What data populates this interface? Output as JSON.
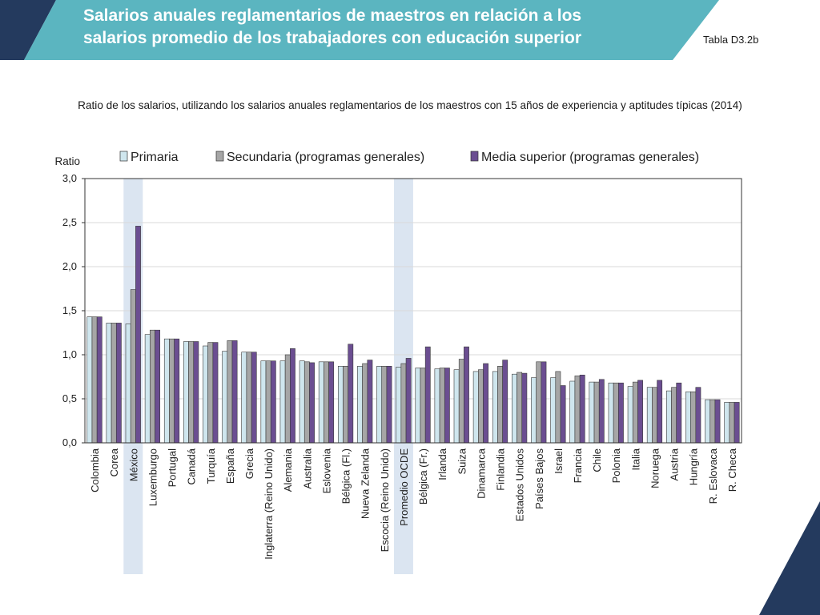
{
  "header": {
    "title_line1": "Salarios anuales reglamentarios de maestros en relación a los",
    "title_line2": "salarios promedio de los trabajadores con educación superior",
    "table_ref": "Tabla D3.2b"
  },
  "colors": {
    "header_bg": "#5bb5c0",
    "dark_navy": "#243a5e",
    "highlight_band": "#dbe5f1",
    "primaria": "#cfe6ee",
    "secundaria": "#a6a6a6",
    "media_superior": "#6b4e91"
  },
  "chart_data": {
    "type": "bar",
    "title": "Ratio de los salarios, utilizando los salarios anuales reglamentarios de los maestros con 15 años de experiencia y aptitudes típicas (2014)",
    "ylabel": "Ratio",
    "ylim": [
      0,
      3.0
    ],
    "yticks": [
      "3,0",
      "2,5",
      "2,0",
      "1,5",
      "1,0",
      "0,5",
      "0,0"
    ],
    "ytick_values": [
      3.0,
      2.5,
      2.0,
      1.5,
      1.0,
      0.5,
      0.0
    ],
    "legend_position": "top",
    "highlighted_categories": [
      "México",
      "Promedio OCDE"
    ],
    "categories": [
      "Colombia",
      "Corea",
      "México",
      "Luxemburgo",
      "Portugal",
      "Canadá",
      "Turquía",
      "España",
      "Grecia",
      "Inglaterra (Reino Unido)",
      "Alemania",
      "Australia",
      "Eslovenia",
      "Bélgica (Fl.)",
      "Nueva Zelanda",
      "Escocia (Reino Unido)",
      "Promedio OCDE",
      "Bélgica (Fr.)",
      "Irlanda",
      "Suiza",
      "Dinamarca",
      "Finlandia",
      "Estados Unidos",
      "Países Bajos",
      "Israel",
      "Francia",
      "Chile",
      "Polonia",
      "Italia",
      "Noruega",
      "Austria",
      "Hungría",
      "R. Eslovaca",
      "R. Checa"
    ],
    "series": [
      {
        "name": "Primaria",
        "values": [
          1.43,
          1.36,
          1.35,
          1.23,
          1.18,
          1.15,
          1.1,
          1.04,
          1.03,
          0.93,
          0.93,
          0.93,
          0.92,
          0.87,
          0.87,
          0.87,
          0.86,
          0.85,
          0.84,
          0.83,
          0.81,
          0.81,
          0.78,
          0.74,
          0.74,
          0.7,
          0.69,
          0.68,
          0.64,
          0.63,
          0.59,
          0.58,
          0.49,
          0.46
        ]
      },
      {
        "name": "Secundaria (programas generales)",
        "values": [
          1.43,
          1.36,
          1.74,
          1.28,
          1.18,
          1.15,
          1.14,
          1.16,
          1.03,
          0.93,
          1.0,
          0.92,
          0.92,
          0.87,
          0.9,
          0.87,
          0.9,
          0.85,
          0.85,
          0.95,
          0.83,
          0.87,
          0.8,
          0.92,
          0.81,
          0.76,
          0.69,
          0.68,
          0.69,
          0.63,
          0.63,
          0.58,
          0.49,
          0.46
        ]
      },
      {
        "name": "Media superior (programas generales)",
        "values": [
          1.43,
          1.36,
          2.46,
          1.28,
          1.18,
          1.15,
          1.14,
          1.16,
          1.03,
          0.93,
          1.07,
          0.91,
          0.92,
          1.12,
          0.94,
          0.87,
          0.96,
          1.09,
          0.85,
          1.09,
          0.9,
          0.94,
          0.79,
          0.92,
          0.65,
          0.77,
          0.72,
          0.68,
          0.71,
          0.71,
          0.68,
          0.63,
          0.49,
          0.46
        ]
      }
    ]
  }
}
